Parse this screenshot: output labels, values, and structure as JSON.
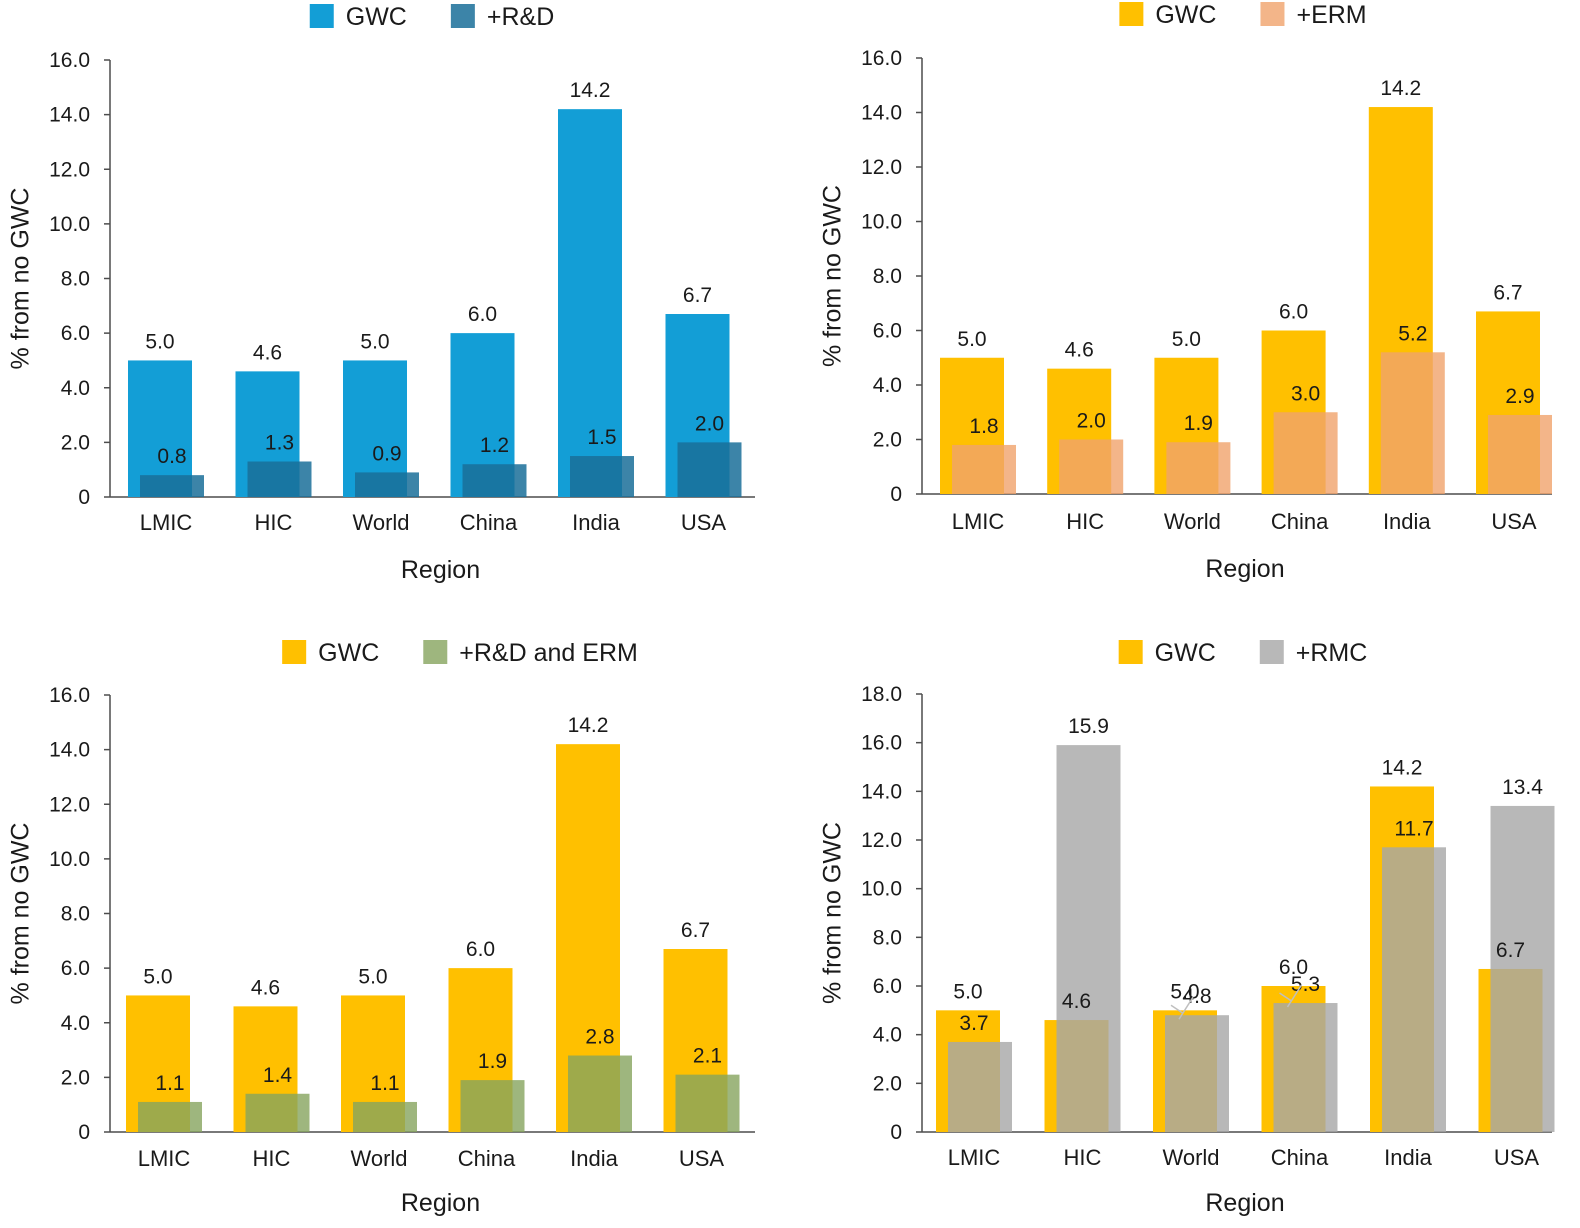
{
  "chart_data": [
    {
      "type": "bar",
      "title": "",
      "xlabel": "Region",
      "ylabel": "% from no GWC",
      "categories": [
        "LMIC",
        "HIC",
        "World",
        "China",
        "India",
        "USA"
      ],
      "ylim": [
        0,
        16
      ],
      "yticks": [
        "0",
        "2.0",
        "4.0",
        "6.0",
        "8.0",
        "10.0",
        "12.0",
        "14.0",
        "16.0"
      ],
      "legend_position": "top-center",
      "series": [
        {
          "name": "GWC",
          "color": "#139ED6",
          "values": [
            5.0,
            4.6,
            5.0,
            6.0,
            14.2,
            6.7
          ],
          "labels": [
            "5.0",
            "4.6",
            "5.0",
            "6.0",
            "14.2",
            "6.7"
          ]
        },
        {
          "name": "+R&D",
          "color": "#1A6E99",
          "values": [
            0.8,
            1.3,
            0.9,
            1.2,
            1.5,
            2.0
          ],
          "labels": [
            "0.8",
            "1.3",
            "0.9",
            "1.2",
            "1.5",
            "2.0"
          ]
        }
      ]
    },
    {
      "type": "bar",
      "title": "",
      "xlabel": "Region",
      "ylabel": "% from no GWC",
      "categories": [
        "LMIC",
        "HIC",
        "World",
        "China",
        "India",
        "USA"
      ],
      "ylim": [
        0,
        16
      ],
      "yticks": [
        "0",
        "2.0",
        "4.0",
        "6.0",
        "8.0",
        "10.0",
        "12.0",
        "14.0",
        "16.0"
      ],
      "legend_position": "top-center",
      "series": [
        {
          "name": "GWC",
          "color": "#FFC000",
          "values": [
            5.0,
            4.6,
            5.0,
            6.0,
            14.2,
            6.7
          ],
          "labels": [
            "5.0",
            "4.6",
            "5.0",
            "6.0",
            "14.2",
            "6.7"
          ]
        },
        {
          "name": "+ERM",
          "color": "#F0A36B",
          "values": [
            1.8,
            2.0,
            1.9,
            3.0,
            5.2,
            2.9
          ],
          "labels": [
            "1.8",
            "2.0",
            "1.9",
            "3.0",
            "5.2",
            "2.9"
          ]
        }
      ]
    },
    {
      "type": "bar",
      "title": "",
      "xlabel": "Region",
      "ylabel": "% from no GWC",
      "categories": [
        "LMIC",
        "HIC",
        "World",
        "China",
        "India",
        "USA"
      ],
      "ylim": [
        0,
        16
      ],
      "yticks": [
        "0",
        "2.0",
        "4.0",
        "6.0",
        "8.0",
        "10.0",
        "12.0",
        "14.0",
        "16.0"
      ],
      "legend_position": "top-center",
      "series": [
        {
          "name": "GWC",
          "color": "#FFC000",
          "values": [
            5.0,
            4.6,
            5.0,
            6.0,
            14.2,
            6.7
          ],
          "labels": [
            "5.0",
            "4.6",
            "5.0",
            "6.0",
            "14.2",
            "6.7"
          ]
        },
        {
          "name": "+R&D and ERM",
          "color": "#86A45E",
          "values": [
            1.1,
            1.4,
            1.1,
            1.9,
            2.8,
            2.1
          ],
          "labels": [
            "1.1",
            "1.4",
            "1.1",
            "1.9",
            "2.8",
            "2.1"
          ]
        }
      ]
    },
    {
      "type": "bar",
      "title": "",
      "xlabel": "Region",
      "ylabel": "% from no GWC",
      "categories": [
        "LMIC",
        "HIC",
        "World",
        "China",
        "India",
        "USA"
      ],
      "ylim": [
        0,
        18
      ],
      "yticks": [
        "0",
        "2.0",
        "4.0",
        "6.0",
        "8.0",
        "10.0",
        "12.0",
        "14.0",
        "16.0",
        "18.0"
      ],
      "legend_position": "top-center",
      "series": [
        {
          "name": "GWC",
          "color": "#FFC000",
          "values": [
            5.0,
            4.6,
            5.0,
            6.0,
            14.2,
            6.7
          ],
          "labels": [
            "5.0",
            "4.6",
            "5.0",
            "6.0",
            "14.2",
            "6.7"
          ]
        },
        {
          "name": "+RMC",
          "color": "#A6A6A6",
          "values": [
            3.7,
            15.9,
            4.8,
            5.3,
            11.7,
            13.4
          ],
          "labels": [
            "3.7",
            "15.9",
            "4.8",
            "5.3",
            "11.7",
            "13.4"
          ]
        }
      ]
    }
  ]
}
